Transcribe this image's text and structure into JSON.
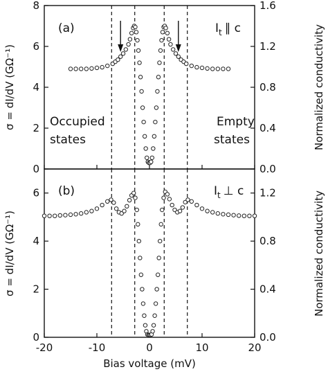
{
  "chart_data": [
    {
      "type": "scatter",
      "panel_label": "(a)",
      "orientation_prefix": "I",
      "orientation_sub": "t",
      "orientation_rel": "∥ c",
      "xlim": [
        -20,
        20
      ],
      "ylim": [
        0,
        8
      ],
      "y2lim": [
        0.0,
        1.6
      ],
      "yticks": [
        "0",
        "2",
        "4",
        "6",
        "8"
      ],
      "y2ticks": [
        "0.0",
        "0.4",
        "0.8",
        "1.2",
        "1.6"
      ],
      "ylabel": "σ = dI/dV (GΩ⁻¹)",
      "y2label": "Normalized conductivity",
      "region_left": [
        "Occupied",
        "states"
      ],
      "region_right": [
        "Empty",
        "states"
      ],
      "dashed_x": [
        -7.2,
        -2.8,
        2.8,
        7.2
      ],
      "arrows_x": [
        -5.5,
        5.5
      ],
      "series": [
        {
          "points": [
            [
              -15.0,
              4.9
            ],
            [
              -14.0,
              4.9
            ],
            [
              -13.0,
              4.9
            ],
            [
              -12.0,
              4.9
            ],
            [
              -11.0,
              4.92
            ],
            [
              -10.0,
              4.95
            ],
            [
              -9.0,
              4.98
            ],
            [
              -8.0,
              5.05
            ],
            [
              -7.0,
              5.15
            ],
            [
              -6.5,
              5.25
            ],
            [
              -6.0,
              5.35
            ],
            [
              -5.5,
              5.5
            ],
            [
              -5.0,
              5.65
            ],
            [
              -4.5,
              5.85
            ],
            [
              -4.0,
              6.1
            ],
            [
              -3.7,
              6.35
            ],
            [
              -3.4,
              6.65
            ],
            [
              -3.1,
              6.9
            ],
            [
              -2.9,
              7.0
            ],
            [
              -2.7,
              6.95
            ],
            [
              -2.5,
              6.7
            ],
            [
              -2.3,
              6.3
            ],
            [
              -2.1,
              5.8
            ],
            [
              -1.9,
              5.2
            ],
            [
              -1.7,
              4.5
            ],
            [
              -1.5,
              3.8
            ],
            [
              -1.3,
              3.0
            ],
            [
              -1.1,
              2.3
            ],
            [
              -0.9,
              1.6
            ],
            [
              -0.7,
              1.0
            ],
            [
              -0.5,
              0.55
            ],
            [
              -0.3,
              0.35
            ],
            [
              -0.1,
              0.3
            ],
            [
              0.1,
              0.3
            ],
            [
              0.3,
              0.35
            ],
            [
              0.5,
              0.55
            ],
            [
              0.7,
              1.0
            ],
            [
              0.9,
              1.6
            ],
            [
              1.1,
              2.3
            ],
            [
              1.3,
              3.0
            ],
            [
              1.5,
              3.8
            ],
            [
              1.7,
              4.5
            ],
            [
              1.9,
              5.2
            ],
            [
              2.1,
              5.8
            ],
            [
              2.3,
              6.3
            ],
            [
              2.5,
              6.7
            ],
            [
              2.7,
              6.95
            ],
            [
              2.9,
              7.0
            ],
            [
              3.1,
              6.9
            ],
            [
              3.4,
              6.65
            ],
            [
              3.7,
              6.35
            ],
            [
              4.0,
              6.1
            ],
            [
              4.5,
              5.85
            ],
            [
              5.0,
              5.65
            ],
            [
              5.5,
              5.5
            ],
            [
              6.0,
              5.35
            ],
            [
              6.5,
              5.25
            ],
            [
              7.0,
              5.15
            ],
            [
              8.0,
              5.05
            ],
            [
              9.0,
              4.98
            ],
            [
              10.0,
              4.95
            ],
            [
              11.0,
              4.92
            ],
            [
              12.0,
              4.9
            ],
            [
              13.0,
              4.9
            ],
            [
              14.0,
              4.9
            ],
            [
              15.0,
              4.9
            ]
          ]
        }
      ]
    },
    {
      "type": "scatter",
      "panel_label": "(b)",
      "orientation_prefix": "I",
      "orientation_sub": "t",
      "orientation_rel": "⊥ c",
      "xlim": [
        -20,
        20
      ],
      "ylim": [
        0,
        7
      ],
      "y2lim": [
        0.0,
        1.4
      ],
      "yticks": [
        "0",
        "2",
        "4",
        "6"
      ],
      "y2ticks": [
        "0.0",
        "0.4",
        "0.8",
        "1.2"
      ],
      "xticks": [
        "-20",
        "-10",
        "0",
        "10",
        "20"
      ],
      "xlabel": "Bias voltage (mV)",
      "ylabel": "σ = dI/dV (GΩ⁻¹)",
      "y2label": "Normalized conductivity",
      "dashed_x": [
        -7.2,
        -2.8,
        2.8,
        7.2
      ],
      "series": [
        {
          "points": [
            [
              -20.0,
              5.05
            ],
            [
              -19.0,
              5.05
            ],
            [
              -18.0,
              5.05
            ],
            [
              -17.0,
              5.07
            ],
            [
              -16.0,
              5.08
            ],
            [
              -15.0,
              5.1
            ],
            [
              -14.0,
              5.12
            ],
            [
              -13.0,
              5.15
            ],
            [
              -12.0,
              5.2
            ],
            [
              -11.0,
              5.25
            ],
            [
              -10.0,
              5.35
            ],
            [
              -9.0,
              5.5
            ],
            [
              -8.0,
              5.65
            ],
            [
              -7.3,
              5.72
            ],
            [
              -6.8,
              5.6
            ],
            [
              -6.3,
              5.35
            ],
            [
              -5.8,
              5.2
            ],
            [
              -5.3,
              5.15
            ],
            [
              -4.8,
              5.25
            ],
            [
              -4.3,
              5.45
            ],
            [
              -3.8,
              5.7
            ],
            [
              -3.4,
              5.9
            ],
            [
              -3.0,
              6.0
            ],
            [
              -2.7,
              5.8
            ],
            [
              -2.4,
              5.3
            ],
            [
              -2.2,
              4.7
            ],
            [
              -2.0,
              4.0
            ],
            [
              -1.8,
              3.3
            ],
            [
              -1.6,
              2.6
            ],
            [
              -1.4,
              2.0
            ],
            [
              -1.2,
              1.4
            ],
            [
              -1.0,
              0.9
            ],
            [
              -0.8,
              0.5
            ],
            [
              -0.6,
              0.25
            ],
            [
              -0.4,
              0.12
            ],
            [
              -0.2,
              0.1
            ],
            [
              0.0,
              0.1
            ],
            [
              0.2,
              0.1
            ],
            [
              0.4,
              0.12
            ],
            [
              0.6,
              0.25
            ],
            [
              0.8,
              0.5
            ],
            [
              1.0,
              0.9
            ],
            [
              1.2,
              1.4
            ],
            [
              1.4,
              2.0
            ],
            [
              1.6,
              2.6
            ],
            [
              1.8,
              3.3
            ],
            [
              2.0,
              4.0
            ],
            [
              2.2,
              4.7
            ],
            [
              2.4,
              5.3
            ],
            [
              2.7,
              5.8
            ],
            [
              3.0,
              6.05
            ],
            [
              3.4,
              5.95
            ],
            [
              3.8,
              5.75
            ],
            [
              4.3,
              5.5
            ],
            [
              4.8,
              5.3
            ],
            [
              5.3,
              5.2
            ],
            [
              5.8,
              5.25
            ],
            [
              6.3,
              5.4
            ],
            [
              6.8,
              5.62
            ],
            [
              7.3,
              5.72
            ],
            [
              8.0,
              5.65
            ],
            [
              9.0,
              5.5
            ],
            [
              10.0,
              5.35
            ],
            [
              11.0,
              5.25
            ],
            [
              12.0,
              5.2
            ],
            [
              13.0,
              5.15
            ],
            [
              14.0,
              5.12
            ],
            [
              15.0,
              5.1
            ],
            [
              16.0,
              5.08
            ],
            [
              17.0,
              5.06
            ],
            [
              18.0,
              5.05
            ],
            [
              19.0,
              5.05
            ],
            [
              20.0,
              5.05
            ]
          ]
        }
      ]
    }
  ]
}
